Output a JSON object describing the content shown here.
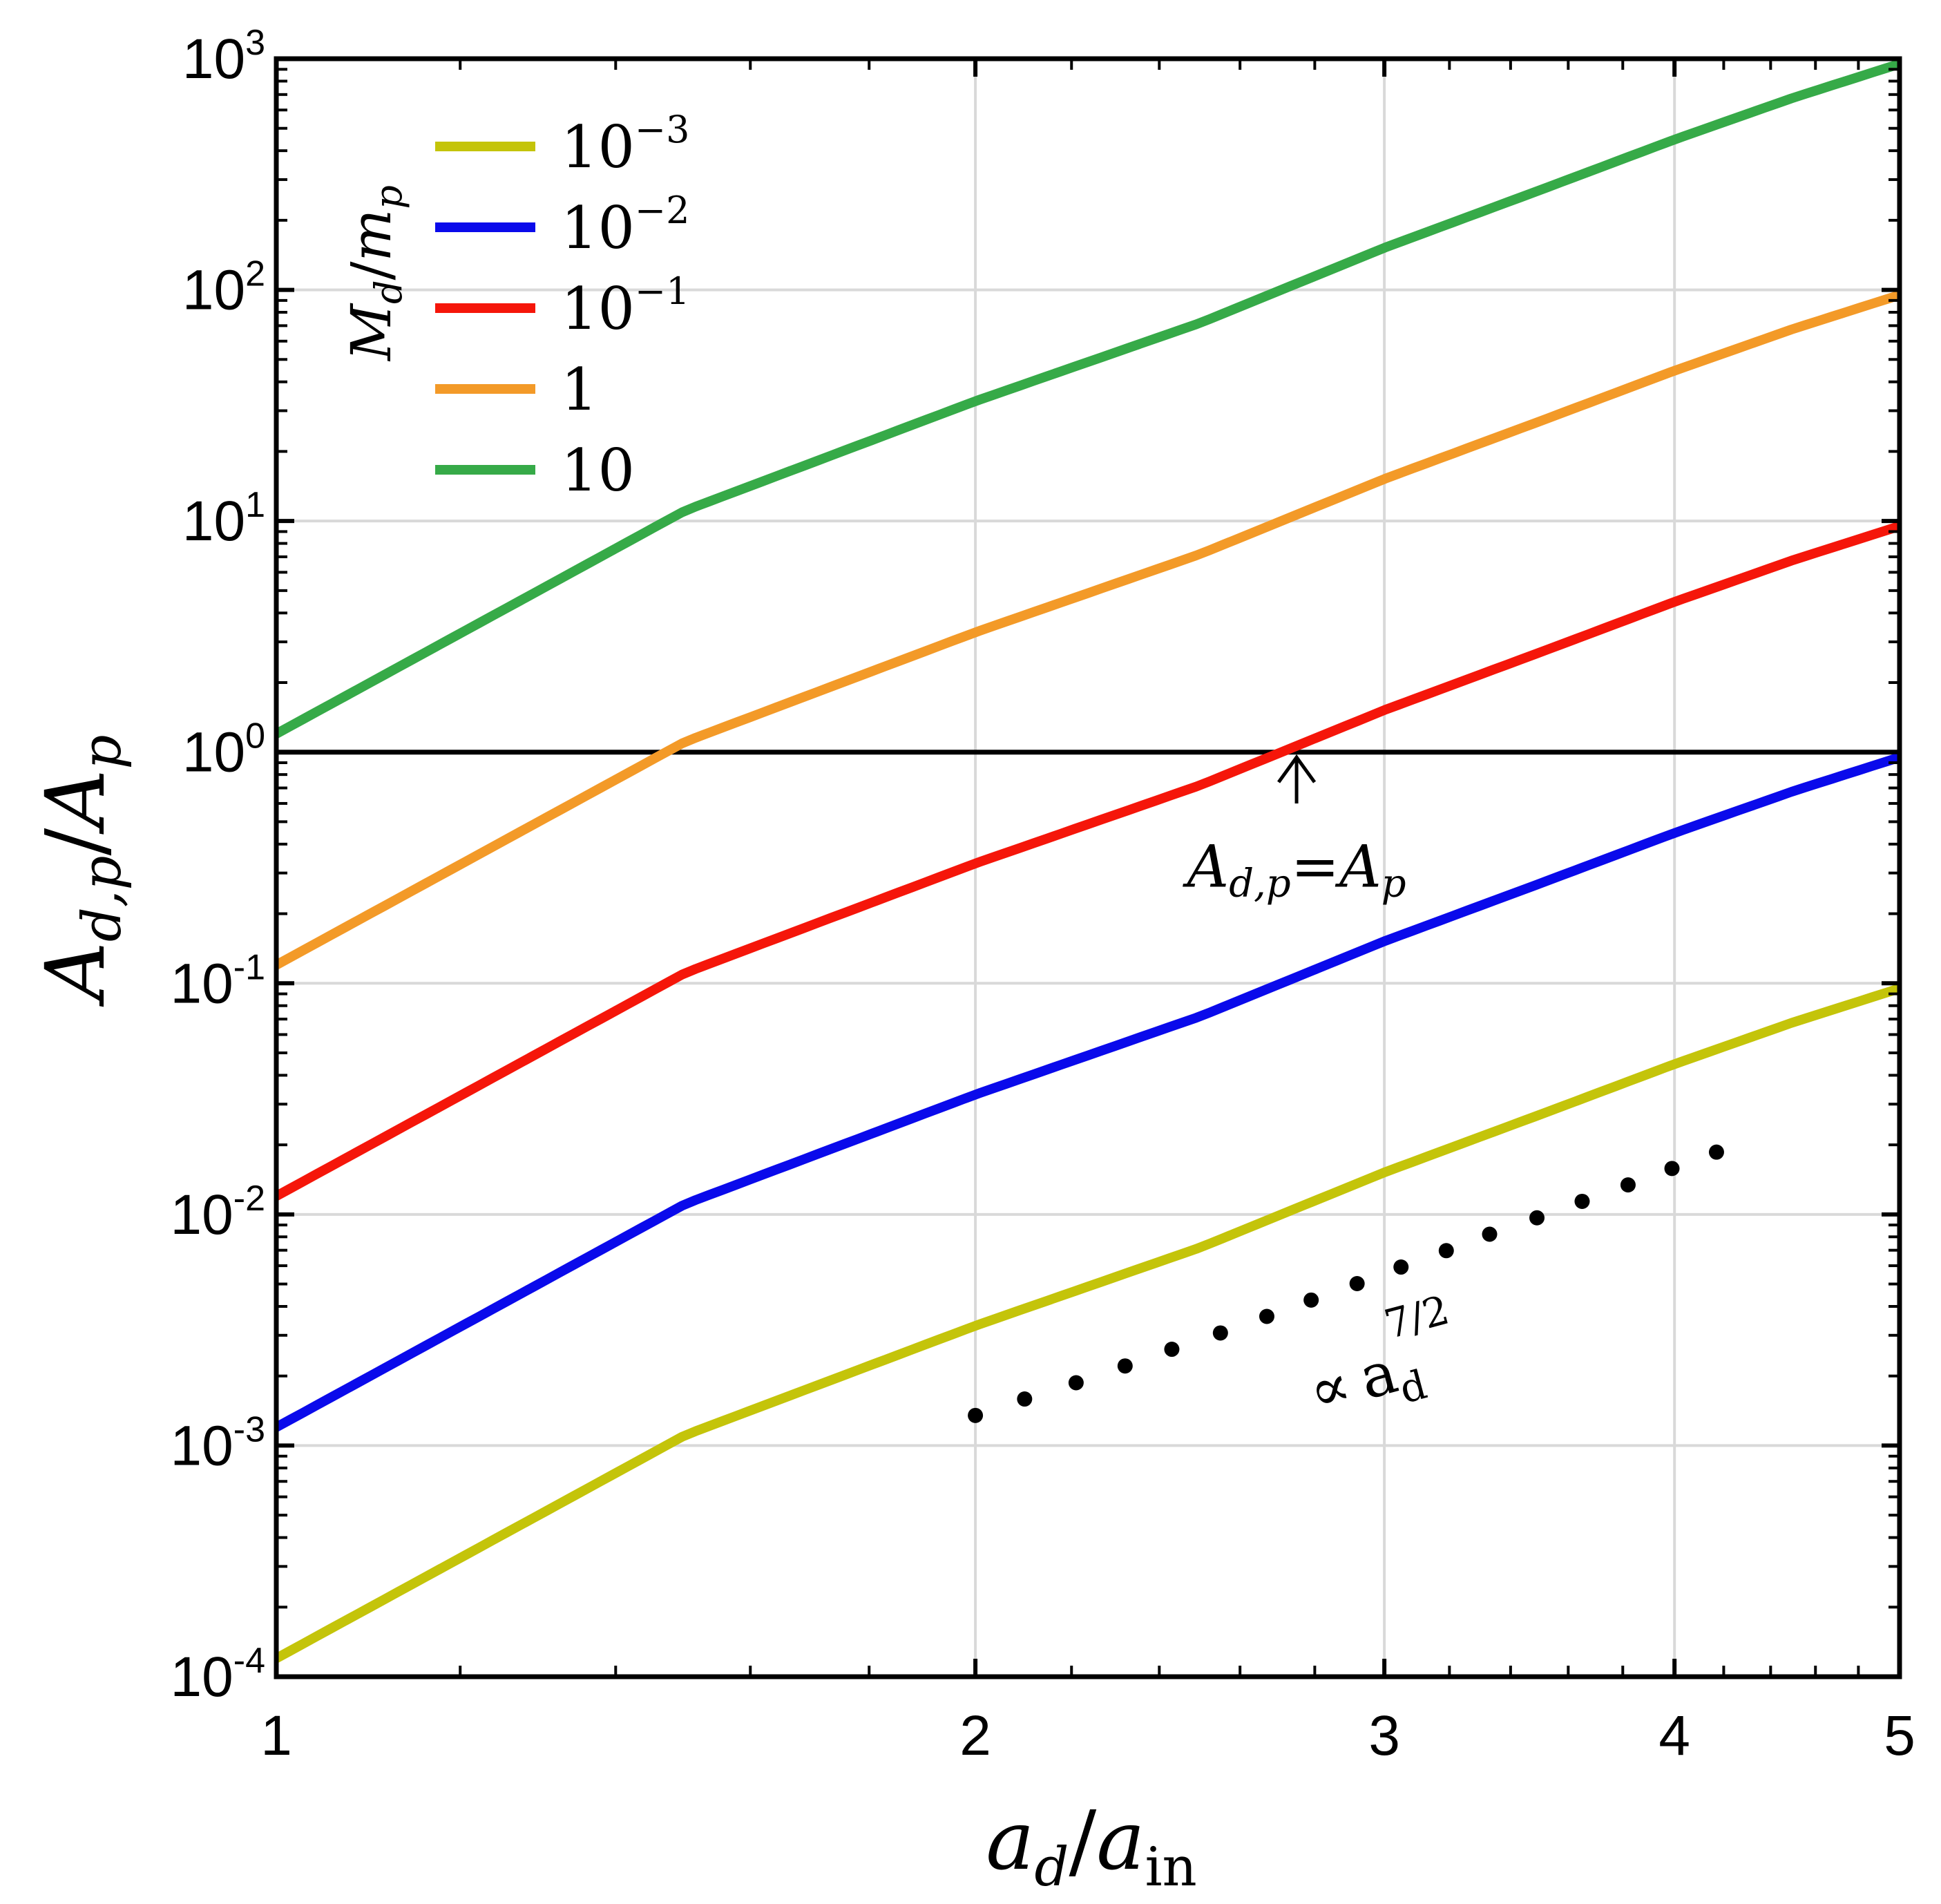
{
  "chart_data": {
    "type": "line",
    "x_scale": "log",
    "y_scale": "log",
    "xlim": [
      1,
      5
    ],
    "ylim_exponents": [
      -4,
      3
    ],
    "xlabel": {
      "var": "a",
      "sub": "d",
      "slash": "/",
      "var2": "a",
      "sub2": "in"
    },
    "ylabel": {
      "var": "A",
      "sub": "d,p",
      "slash": "/",
      "var2": "A",
      "sub2": "p"
    },
    "x_ticks": [
      {
        "value": 1,
        "label": "1"
      },
      {
        "value": 2,
        "label": "2"
      },
      {
        "value": 3,
        "label": "3"
      },
      {
        "value": 4,
        "label": "4"
      },
      {
        "value": 5,
        "label": "5"
      }
    ],
    "y_ticks": [
      {
        "exp": -4,
        "base": "10",
        "sup": "-4"
      },
      {
        "exp": -3,
        "base": "10",
        "sup": "-3"
      },
      {
        "exp": -2,
        "base": "10",
        "sup": "-2"
      },
      {
        "exp": -1,
        "base": "10",
        "sup": "-1"
      },
      {
        "exp": 0,
        "base": "10",
        "sup": "0"
      },
      {
        "exp": 1,
        "base": "10",
        "sup": "1"
      },
      {
        "exp": 2,
        "base": "10",
        "sup": "2"
      },
      {
        "exp": 3,
        "base": "10",
        "sup": "3"
      }
    ],
    "grid": true,
    "legend": {
      "title": {
        "var": "M",
        "sub": "d",
        "slash": "/",
        "var2": "m",
        "sub2": "p"
      },
      "placement": "top-left",
      "entries": [
        {
          "base": "10",
          "sup": "−3"
        },
        {
          "base": "10",
          "sup": "−2"
        },
        {
          "base": "10",
          "sup": "−1"
        },
        {
          "base": "1",
          "sup": ""
        },
        {
          "base": "10",
          "sup": ""
        }
      ]
    },
    "series": [
      {
        "name": "10^-3",
        "color": "#c4c40a",
        "mass_ratio": 0.001,
        "x": [
          1,
          1.5,
          2,
          2.5,
          3,
          3.5,
          4,
          4.5,
          5
        ],
        "y": [
          0.00012,
          0.00111,
          0.0033,
          0.0072,
          0.0152,
          0.027,
          0.0447,
          0.0678,
          0.095
        ]
      },
      {
        "name": "10^-2",
        "color": "#0a0aeb",
        "mass_ratio": 0.01,
        "x": [
          1,
          1.5,
          2,
          2.5,
          3,
          3.5,
          4,
          4.5,
          5
        ],
        "y": [
          0.0012,
          0.0111,
          0.033,
          0.072,
          0.152,
          0.27,
          0.447,
          0.678,
          0.95
        ]
      },
      {
        "name": "10^-1",
        "color": "#f5160a",
        "mass_ratio": 0.1,
        "x": [
          1,
          1.5,
          2,
          2.5,
          3,
          3.5,
          4,
          4.5,
          5
        ],
        "y": [
          0.012,
          0.111,
          0.33,
          0.72,
          1.52,
          2.7,
          4.47,
          6.78,
          9.5
        ]
      },
      {
        "name": "1",
        "color": "#f39a28",
        "mass_ratio": 1,
        "x": [
          1,
          1.5,
          2,
          2.5,
          3,
          3.5,
          4,
          4.5,
          5
        ],
        "y": [
          0.12,
          1.11,
          3.3,
          7.2,
          15.2,
          27.0,
          44.7,
          67.8,
          95
        ]
      },
      {
        "name": "10",
        "color": "#36aa48",
        "mass_ratio": 10,
        "x": [
          1,
          1.5,
          2,
          2.5,
          3,
          3.5,
          4,
          4.5,
          5
        ],
        "y": [
          1.2,
          11.1,
          33,
          72,
          152,
          270,
          447,
          678,
          950
        ]
      }
    ],
    "reference_line": {
      "y": 1,
      "color": "#000000"
    },
    "annotations": {
      "equality_arrow": {
        "x": 2.75,
        "y_tip": 0.95,
        "y_tail": 0.6
      },
      "equality_label": {
        "lhs": "A",
        "lhs_sub": "d,p",
        "eq": "=",
        "rhs": "A",
        "rhs_sub": "p",
        "x": 2.75,
        "y": 0.3
      },
      "power_law_dots": {
        "x": [
          2.0,
          2.1,
          2.21,
          2.32,
          2.43,
          2.55,
          2.67,
          2.79,
          2.92,
          3.05,
          3.19,
          3.33,
          3.49,
          3.65,
          3.82,
          3.99,
          4.17
        ],
        "y": [
          0.00135,
          0.00159,
          0.00187,
          0.00221,
          0.00261,
          0.00307,
          0.00362,
          0.00426,
          0.00502,
          0.00592,
          0.00697,
          0.00821,
          0.00967,
          0.01139,
          0.01342,
          0.0158,
          0.0186
        ]
      },
      "power_law_label": {
        "prefix": "∝",
        "var": "a",
        "sub": "d",
        "sup": "7/2",
        "x": 2.92,
        "y": 0.0024
      }
    }
  }
}
